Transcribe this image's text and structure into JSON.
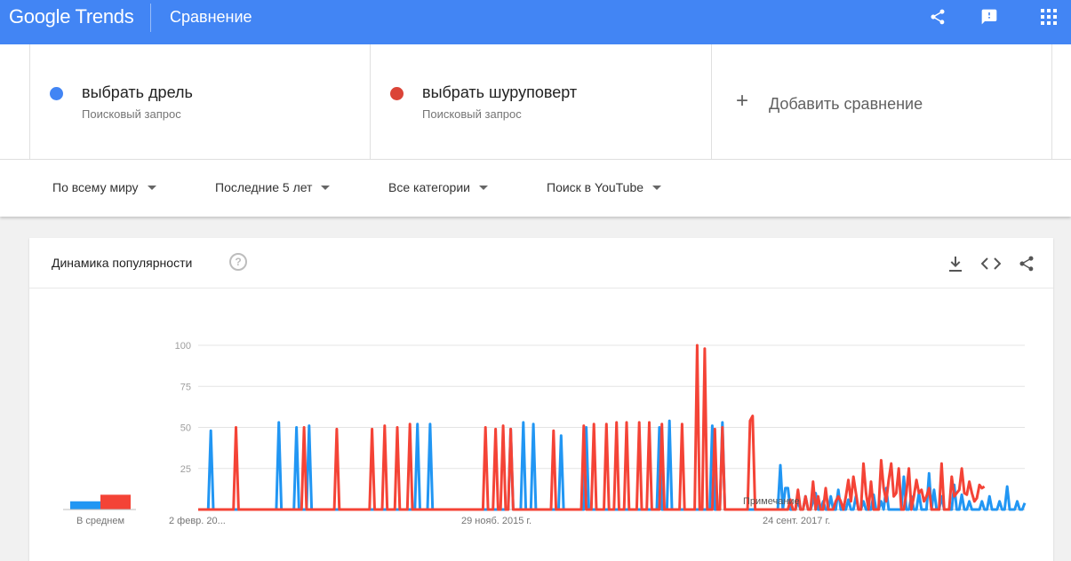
{
  "header": {
    "logo_text": "Google Trends",
    "page_title": "Сравнение",
    "icons": [
      "share-icon",
      "feedback-icon",
      "apps-grid-icon"
    ],
    "color": "#4285f4"
  },
  "terms": [
    {
      "name": "выбрать дрель",
      "type": "Поисковый запрос",
      "color": "#4285f4"
    },
    {
      "name": "выбрать шуруповерт",
      "type": "Поисковый запрос",
      "color": "#db4437"
    }
  ],
  "add_compare_label": "Добавить сравнение",
  "filters": {
    "region": "По всему миру",
    "period": "Последние 5 лет",
    "category": "Все категории",
    "search_type": "Поиск в YouTube"
  },
  "card": {
    "title": "Динамика популярности",
    "icons": [
      "help-icon",
      "download-icon",
      "embed-icon",
      "share-icon"
    ]
  },
  "chart_data": {
    "type": "line",
    "ylim": [
      0,
      100
    ],
    "y_ticks": [
      "100",
      "75",
      "50",
      "25"
    ],
    "x_tick_labels": [
      "2 февр. 20...",
      "29 нояб. 2015 г.",
      "24 сент. 2017 г."
    ],
    "note_label": "Примечание",
    "average_label": "В среднем",
    "averages": [
      {
        "name": "выбрать дрель",
        "value": 5,
        "color": "#2196f3"
      },
      {
        "name": "выбрать шуруповерт",
        "value": 9,
        "color": "#f44336"
      }
    ],
    "series": [
      {
        "name": "выбрать дрель",
        "color": "#2196f3",
        "values": [
          0,
          0,
          0,
          0,
          0,
          48,
          0,
          0,
          0,
          0,
          0,
          0,
          0,
          0,
          0,
          0,
          0,
          0,
          0,
          0,
          0,
          0,
          0,
          0,
          0,
          0,
          0,
          0,
          0,
          0,
          0,
          0,
          53,
          0,
          0,
          0,
          0,
          0,
          0,
          50,
          0,
          0,
          0,
          0,
          51,
          0,
          0,
          0,
          0,
          0,
          0,
          0,
          0,
          0,
          0,
          0,
          0,
          0,
          0,
          0,
          0,
          0,
          0,
          0,
          0,
          0,
          0,
          0,
          0,
          0,
          0,
          0,
          0,
          0,
          0,
          0,
          0,
          0,
          0,
          0,
          0,
          0,
          0,
          0,
          0,
          0,
          0,
          52,
          0,
          0,
          0,
          0,
          52,
          0,
          0,
          0,
          0,
          0,
          0,
          0,
          0,
          0,
          0,
          0,
          0,
          0,
          0,
          0,
          0,
          0,
          0,
          0,
          0,
          0,
          0,
          0,
          0,
          0,
          0,
          0,
          0,
          0,
          0,
          0,
          49,
          0,
          0,
          0,
          0,
          53,
          0,
          0,
          0,
          52,
          0,
          0,
          0,
          0,
          0,
          0,
          0,
          0,
          0,
          0,
          45,
          0,
          0,
          0,
          0,
          0,
          0,
          0,
          0,
          0,
          50,
          0,
          0,
          0,
          0,
          0,
          0,
          0,
          0,
          0,
          0,
          0,
          0,
          0,
          0,
          0,
          0,
          0,
          0,
          0,
          0,
          0,
          0,
          0,
          0,
          0,
          0,
          0,
          0,
          50,
          0,
          0,
          0,
          54,
          0,
          0,
          0,
          0,
          0,
          0,
          0,
          0,
          0,
          0,
          0,
          0,
          0,
          0,
          0,
          0,
          51,
          0,
          0,
          0,
          53,
          0,
          0,
          0,
          0,
          0,
          0,
          0,
          0,
          0,
          0,
          0,
          0,
          0,
          0,
          0,
          0,
          0,
          0,
          0,
          0,
          0,
          0,
          27,
          0,
          13,
          13,
          0,
          0,
          0,
          5,
          0,
          0,
          8,
          0,
          0,
          5,
          10,
          0,
          0,
          5,
          0,
          0,
          8,
          0,
          0,
          12,
          0,
          0,
          0,
          6,
          0,
          0,
          8,
          0,
          0,
          5,
          0,
          0,
          0,
          9,
          0,
          0,
          5,
          0,
          13,
          0,
          0,
          0,
          0,
          0,
          0,
          20,
          0,
          0,
          8,
          0,
          0,
          10,
          0,
          0,
          0,
          22,
          0,
          12,
          0,
          0,
          8,
          0,
          0,
          0,
          0,
          15,
          0,
          0,
          9,
          0,
          0,
          5,
          0,
          0,
          0,
          0,
          5,
          0,
          0,
          8,
          0,
          0,
          0,
          5,
          0,
          0,
          14,
          0,
          0,
          0,
          5,
          0,
          0,
          4
        ]
      },
      {
        "name": "выбрать шуруповерт",
        "color": "#f44336",
        "values": [
          0,
          0,
          0,
          0,
          0,
          0,
          0,
          0,
          0,
          0,
          0,
          0,
          0,
          0,
          0,
          50,
          0,
          0,
          0,
          0,
          0,
          0,
          0,
          0,
          0,
          0,
          0,
          0,
          0,
          0,
          0,
          0,
          0,
          0,
          0,
          0,
          0,
          0,
          0,
          0,
          0,
          0,
          50,
          0,
          0,
          0,
          0,
          0,
          0,
          0,
          0,
          0,
          0,
          0,
          0,
          49,
          0,
          0,
          0,
          0,
          0,
          0,
          0,
          0,
          0,
          0,
          0,
          0,
          0,
          49,
          0,
          0,
          0,
          0,
          51,
          0,
          0,
          0,
          0,
          50,
          0,
          0,
          0,
          0,
          52,
          0,
          0,
          0,
          0,
          0,
          0,
          0,
          0,
          0,
          0,
          0,
          0,
          0,
          0,
          0,
          0,
          0,
          0,
          0,
          0,
          0,
          0,
          0,
          0,
          0,
          0,
          0,
          0,
          0,
          50,
          0,
          0,
          0,
          49,
          0,
          0,
          51,
          0,
          0,
          49,
          0,
          0,
          0,
          0,
          0,
          0,
          0,
          0,
          0,
          0,
          0,
          0,
          0,
          0,
          0,
          0,
          48,
          0,
          0,
          0,
          0,
          0,
          0,
          0,
          0,
          0,
          0,
          0,
          51,
          0,
          0,
          0,
          52,
          0,
          0,
          0,
          0,
          52,
          0,
          0,
          0,
          53,
          0,
          0,
          0,
          53,
          0,
          0,
          0,
          0,
          53,
          0,
          0,
          0,
          53,
          0,
          0,
          0,
          0,
          52,
          0,
          0,
          0,
          0,
          0,
          0,
          0,
          52,
          0,
          0,
          0,
          0,
          0,
          100,
          0,
          0,
          98,
          0,
          0,
          0,
          49,
          0,
          0,
          50,
          0,
          0,
          0,
          0,
          0,
          0,
          0,
          0,
          0,
          0,
          54,
          57,
          0,
          0,
          0,
          0,
          0,
          0,
          0,
          0,
          0,
          0,
          0,
          0,
          0,
          0,
          6,
          0,
          0,
          12,
          0,
          0,
          8,
          0,
          0,
          17,
          0,
          8,
          0,
          0,
          13,
          0,
          0,
          0,
          5,
          8,
          5,
          0,
          8,
          18,
          5,
          20,
          10,
          0,
          0,
          28,
          10,
          0,
          17,
          0,
          0,
          0,
          30,
          13,
          5,
          18,
          28,
          8,
          10,
          25,
          0,
          0,
          10,
          25,
          0,
          8,
          18,
          10,
          12,
          5,
          8,
          13,
          0,
          0,
          0,
          0,
          28,
          0,
          0,
          0,
          20,
          8,
          10,
          12,
          25,
          10,
          9,
          17,
          10,
          5,
          7,
          15,
          13,
          14
        ]
      }
    ]
  }
}
